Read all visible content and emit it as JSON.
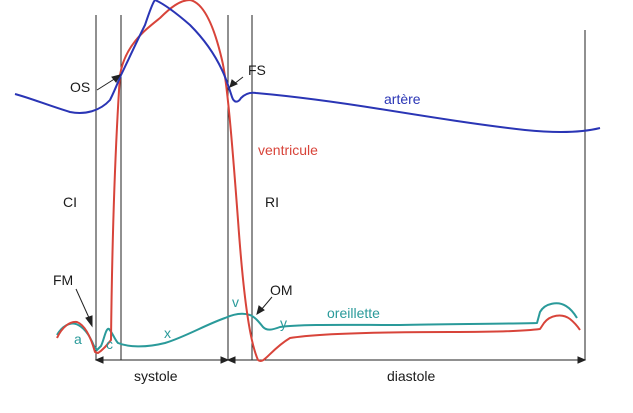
{
  "colors": {
    "artery": "#2a35b5",
    "ventricle": "#d8443a",
    "atrium": "#2a9a9a",
    "lines": "#222222"
  },
  "labels": {
    "os": "OS",
    "fs": "FS",
    "artere": "artère",
    "ventricule": "ventricule",
    "ci": "CI",
    "ri": "RI",
    "fm": "FM",
    "om": "OM",
    "oreillette": "oreillette",
    "wave_a": "a",
    "wave_c": "c",
    "wave_x": "x",
    "wave_v": "v",
    "wave_y": "y",
    "systole": "systole",
    "diastole": "diastole"
  }
}
